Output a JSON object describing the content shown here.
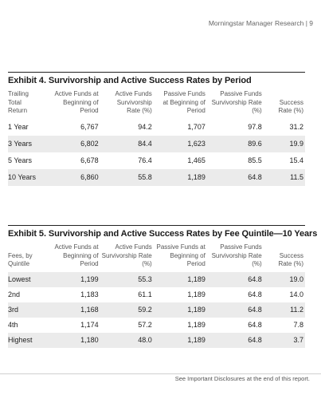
{
  "running_head": "Morningstar Manager Research  |  9",
  "exhibit4": {
    "title": "Exhibit 4. Survivorship and Active Success Rates by Period",
    "headers": [
      "Trailing\nTotal\nReturn",
      "Active Funds at\nBeginning of\nPeriod",
      "Active Funds\nSurvivorship\nRate (%)",
      "Passive Funds\nat Beginning of\nPeriod",
      "Passive Funds\nSurvivorship Rate\n(%)",
      "Success\nRate (%)"
    ],
    "rows": [
      [
        "1 Year",
        "6,767",
        "94.2",
        "1,707",
        "97.8",
        "31.2"
      ],
      [
        "3 Years",
        "6,802",
        "84.4",
        "1,623",
        "89.6",
        "19.9"
      ],
      [
        "5 Years",
        "6,678",
        "76.4",
        "1,465",
        "85.5",
        "15.4"
      ],
      [
        "10 Years",
        "6,860",
        "55.8",
        "1,189",
        "64.8",
        "11.5"
      ]
    ]
  },
  "exhibit5": {
    "title": "Exhibit 5. Survivorship and Active Success Rates by Fee Quintile—10 Years",
    "headers": [
      "Fees, by\nQuintile",
      "Active Funds at\nBeginning of\nPeriod",
      "Active Funds\nSurvivorship Rate\n(%)",
      "Passive Funds at\nBeginning of\nPeriod",
      "Passive Funds\nSurvivorship Rate\n(%)",
      "Success\nRate (%)"
    ],
    "rows": [
      [
        "Lowest",
        "1,199",
        "55.3",
        "1,189",
        "64.8",
        "19.0"
      ],
      [
        "2nd",
        "1,183",
        "61.1",
        "1,189",
        "64.8",
        "14.0"
      ],
      [
        "3rd",
        "1,168",
        "59.2",
        "1,189",
        "64.8",
        "11.2"
      ],
      [
        "4th",
        "1,174",
        "57.2",
        "1,189",
        "64.8",
        "7.8"
      ],
      [
        "Highest",
        "1,180",
        "48.0",
        "1,189",
        "64.8",
        "3.7"
      ]
    ]
  },
  "footer": "See Important Disclosures at the end of this report."
}
